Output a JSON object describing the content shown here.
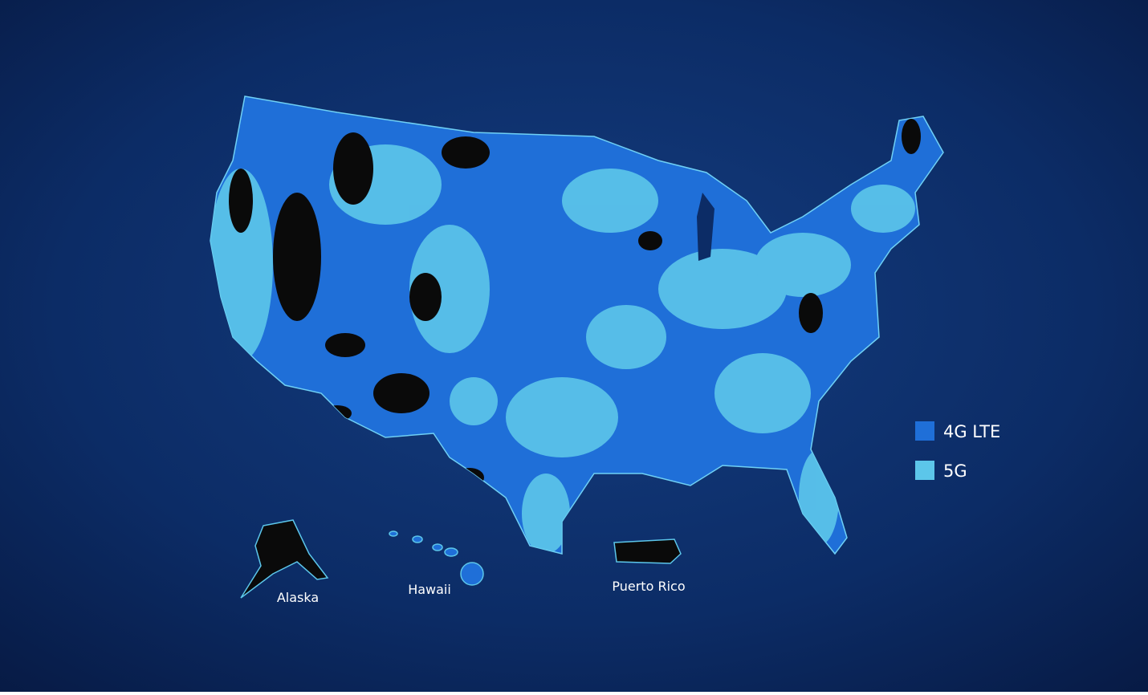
{
  "legend": {
    "items": [
      {
        "label": "4G LTE",
        "color": "#1f6fd8"
      },
      {
        "label": "5G",
        "color": "#5cc6ea"
      }
    ]
  },
  "labels": {
    "alaska": "Alaska",
    "hawaii": "Hawaii",
    "puerto_rico": "Puerto Rico"
  }
}
